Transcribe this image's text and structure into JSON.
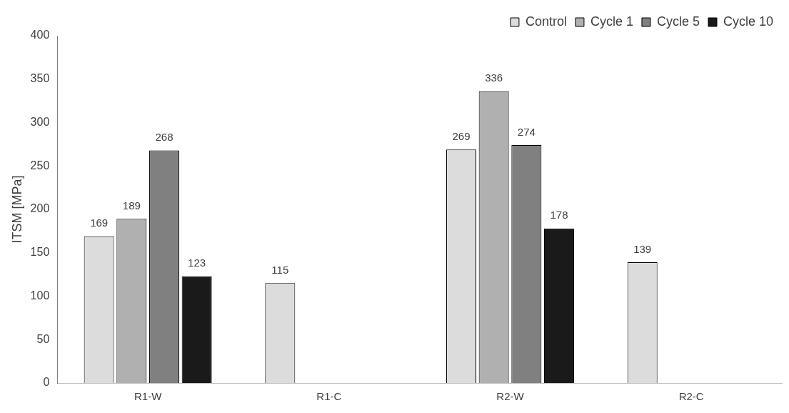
{
  "chart_data": {
    "type": "bar",
    "ylabel": "ITSM [MPa]",
    "categories": [
      "R1-W",
      "R1-C",
      "R2-W",
      "R2-C"
    ],
    "series": [
      {
        "name": "Control",
        "color": "#dcdcdc",
        "values": [
          169,
          115,
          269,
          139
        ]
      },
      {
        "name": "Cycle 1",
        "color": "#b0b0b0",
        "values": [
          189,
          null,
          336,
          null
        ]
      },
      {
        "name": "Cycle 5",
        "color": "#808080",
        "values": [
          268,
          null,
          274,
          null
        ]
      },
      {
        "name": "Cycle 10",
        "color": "#1a1a1a",
        "values": [
          123,
          null,
          178,
          null
        ]
      }
    ],
    "ylim": [
      0,
      400
    ],
    "yticks": [
      0,
      50,
      100,
      150,
      200,
      250,
      300,
      350,
      400
    ],
    "grid": false,
    "legend": "top right",
    "data_labels": true
  }
}
